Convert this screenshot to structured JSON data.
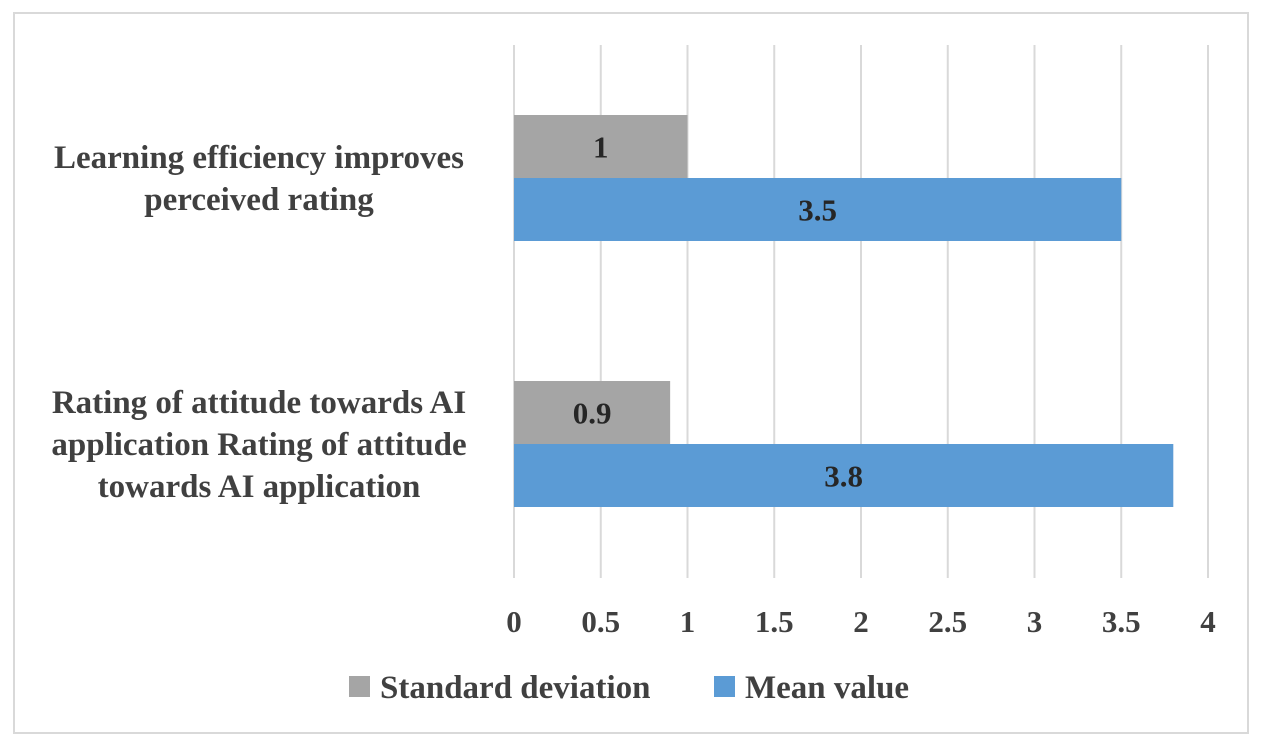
{
  "chart_data": {
    "type": "bar",
    "orientation": "horizontal",
    "categories": [
      "Learning efficiency improves perceived rating",
      "Rating of attitude towards AI application Rating of attitude towards AI application"
    ],
    "category_lines": [
      [
        "Learning efficiency improves",
        "perceived rating"
      ],
      [
        "Rating of attitude towards AI",
        "application Rating of attitude",
        "towards AI application"
      ]
    ],
    "series": [
      {
        "name": "Standard deviation",
        "values": [
          1,
          0.9
        ],
        "color": "#a5a5a5"
      },
      {
        "name": "Mean value",
        "values": [
          3.5,
          3.8
        ],
        "color": "#5b9bd5"
      }
    ],
    "xlim": [
      0,
      4
    ],
    "xticks": [
      "0",
      "0.5",
      "1",
      "1.5",
      "2",
      "2.5",
      "3",
      "3.5",
      "4"
    ],
    "title": "",
    "xlabel": "",
    "ylabel": "",
    "grid": "vertical",
    "legend": "bottom"
  }
}
